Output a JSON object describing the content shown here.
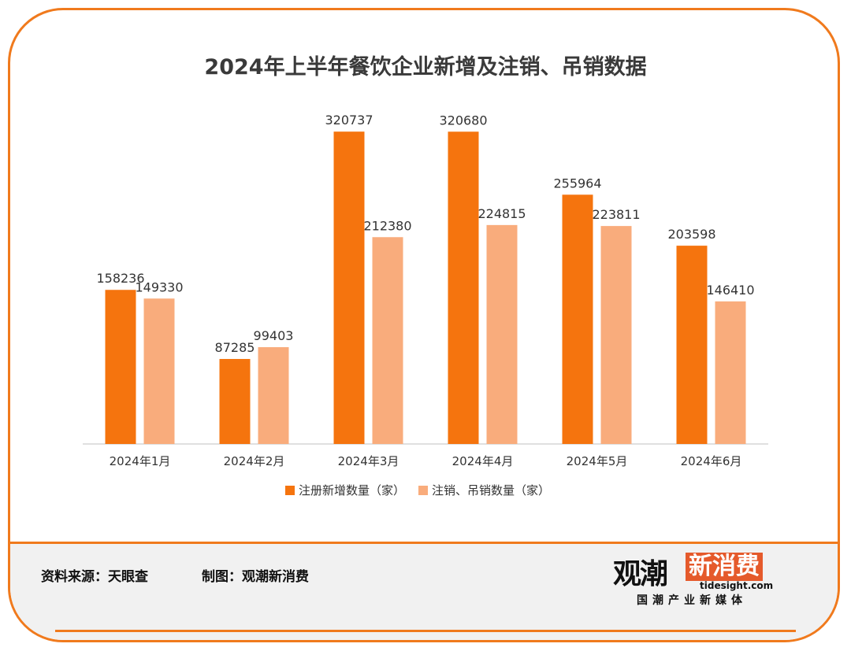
{
  "chart_data": {
    "type": "bar",
    "title": "2024年上半年餐饮企业新增及注销、吊销数据",
    "categories": [
      "2024年1月",
      "2024年2月",
      "2024年3月",
      "2024年4月",
      "2024年5月",
      "2024年6月"
    ],
    "series": [
      {
        "name": "注册新增数量（家）",
        "color": "#f5740e",
        "values": [
          158236,
          87285,
          320737,
          320680,
          255964,
          203598
        ]
      },
      {
        "name": "注销、吊销数量（家）",
        "color": "#f9ac7c",
        "values": [
          149330,
          99403,
          212380,
          224815,
          223811,
          146410
        ]
      }
    ],
    "ylim": [
      0,
      350000
    ],
    "grid": false,
    "legend": "bottom"
  },
  "footer": {
    "source": "资料来源：天眼查",
    "made_by": "制图：观潮新消费"
  },
  "logo": {
    "brand": "观潮",
    "name": "新消费",
    "url": "tidesight.com",
    "tagline": "国潮产业新媒体"
  },
  "colors": {
    "frame": "#f07a1d"
  }
}
